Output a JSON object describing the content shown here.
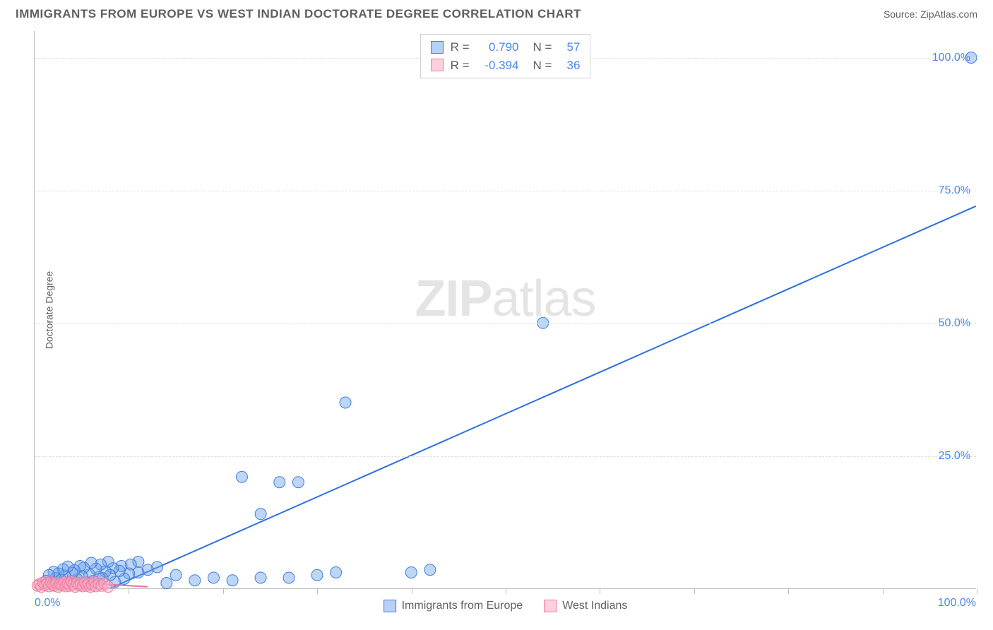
{
  "title": "IMMIGRANTS FROM EUROPE VS WEST INDIAN DOCTORATE DEGREE CORRELATION CHART",
  "source": "Source: ZipAtlas.com",
  "y_axis_label": "Doctorate Degree",
  "watermark_bold": "ZIP",
  "watermark_rest": "atlas",
  "chart": {
    "type": "scatter",
    "xlim": [
      0,
      100
    ],
    "ylim": [
      0,
      105
    ],
    "x_ticks": [
      0,
      10,
      20,
      30,
      40,
      50,
      60,
      70,
      80,
      90,
      100
    ],
    "y_gridlines": [
      25,
      50,
      75,
      100
    ],
    "y_tick_labels": [
      {
        "v": 25,
        "text": "25.0%"
      },
      {
        "v": 50,
        "text": "50.0%"
      },
      {
        "v": 75,
        "text": "75.0%"
      },
      {
        "v": 100,
        "text": "100.0%"
      }
    ],
    "x_tick_labels": [
      {
        "v": 0,
        "text": "0.0%",
        "align": "left"
      },
      {
        "v": 100,
        "text": "100.0%",
        "align": "right"
      }
    ],
    "background_color": "#ffffff",
    "grid_color": "#e0e0e0",
    "axis_color": "#bdbdbd",
    "tick_label_color": "#4a86e8",
    "marker_radius": 8,
    "marker_opacity": 0.45,
    "series": [
      {
        "name": "Immigrants from Europe",
        "color": "#6fa1e8",
        "stroke": "#3f7edb",
        "r_label": "R =",
        "r_value": "0.790",
        "n_label": "N =",
        "n_value": "57",
        "trend": {
          "x1": 8,
          "y1": 0,
          "x2": 100,
          "y2": 72,
          "color": "#2d6fe0",
          "width": 2
        },
        "points": [
          [
            99.5,
            100
          ],
          [
            54,
            50
          ],
          [
            33,
            35
          ],
          [
            22,
            21
          ],
          [
            26,
            20
          ],
          [
            28,
            20
          ],
          [
            24,
            14
          ],
          [
            40,
            3
          ],
          [
            42,
            3.5
          ],
          [
            32,
            3
          ],
          [
            30,
            2.5
          ],
          [
            27,
            2
          ],
          [
            24,
            2
          ],
          [
            21,
            1.5
          ],
          [
            19,
            2
          ],
          [
            17,
            1.5
          ],
          [
            15,
            2.5
          ],
          [
            14,
            1
          ],
          [
            13,
            4
          ],
          [
            12,
            3.5
          ],
          [
            11,
            3
          ],
          [
            11,
            5
          ],
          [
            10.2,
            4.5
          ],
          [
            10,
            2.8
          ],
          [
            9.5,
            1.8
          ],
          [
            9.2,
            4.2
          ],
          [
            9,
            3.3
          ],
          [
            8.5,
            1.2
          ],
          [
            8.3,
            3.8
          ],
          [
            8,
            2.5
          ],
          [
            7.8,
            5
          ],
          [
            7.5,
            3.2
          ],
          [
            7.2,
            1.9
          ],
          [
            7,
            4.5
          ],
          [
            6.8,
            2.1
          ],
          [
            6.5,
            3.7
          ],
          [
            6.2,
            1.4
          ],
          [
            6,
            4.8
          ],
          [
            5.8,
            2.6
          ],
          [
            5.5,
            1.1
          ],
          [
            5.2,
            3.9
          ],
          [
            5,
            2.3
          ],
          [
            4.8,
            4.2
          ],
          [
            4.5,
            1.7
          ],
          [
            4.2,
            3.4
          ],
          [
            4,
            2.9
          ],
          [
            3.8,
            1.3
          ],
          [
            3.5,
            4.1
          ],
          [
            3.2,
            2.4
          ],
          [
            3,
            3.6
          ],
          [
            2.8,
            1.6
          ],
          [
            2.5,
            2.8
          ],
          [
            2.2,
            1.9
          ],
          [
            2,
            3.1
          ],
          [
            1.8,
            1.2
          ],
          [
            1.5,
            2.5
          ],
          [
            1.2,
            1.4
          ]
        ]
      },
      {
        "name": "West Indians",
        "color": "#f8a8c0",
        "stroke": "#ef7ba0",
        "r_label": "R =",
        "r_value": "-0.394",
        "n_label": "N =",
        "n_value": "36",
        "trend": {
          "x1": 0,
          "y1": 1.5,
          "x2": 12,
          "y2": 0.3,
          "color": "#ef6f96",
          "width": 2
        },
        "points": [
          [
            0.3,
            0.5
          ],
          [
            0.5,
            0.8
          ],
          [
            0.7,
            0.3
          ],
          [
            0.9,
            1.1
          ],
          [
            1.1,
            0.6
          ],
          [
            1.3,
            0.9
          ],
          [
            1.5,
            0.4
          ],
          [
            1.7,
            1.2
          ],
          [
            1.9,
            0.7
          ],
          [
            2.1,
            0.5
          ],
          [
            2.3,
            1.0
          ],
          [
            2.5,
            0.3
          ],
          [
            2.7,
            0.8
          ],
          [
            2.9,
            0.6
          ],
          [
            3.1,
            1.1
          ],
          [
            3.3,
            0.4
          ],
          [
            3.5,
            0.9
          ],
          [
            3.7,
            0.5
          ],
          [
            3.9,
            1.3
          ],
          [
            4.1,
            0.7
          ],
          [
            4.3,
            0.3
          ],
          [
            4.5,
            1.0
          ],
          [
            4.7,
            0.6
          ],
          [
            4.9,
            0.8
          ],
          [
            5.1,
            0.4
          ],
          [
            5.3,
            1.1
          ],
          [
            5.5,
            0.5
          ],
          [
            5.7,
            0.9
          ],
          [
            5.9,
            0.3
          ],
          [
            6.1,
            0.7
          ],
          [
            6.3,
            1.2
          ],
          [
            6.5,
            0.4
          ],
          [
            6.8,
            0.8
          ],
          [
            7.1,
            0.5
          ],
          [
            7.4,
            0.9
          ],
          [
            7.8,
            0.3
          ]
        ]
      }
    ]
  },
  "legend_bottom": [
    {
      "label": "Immigrants from Europe",
      "fill": "#b8d0f6",
      "stroke": "#3f7edb"
    },
    {
      "label": "West Indians",
      "fill": "#fcd0dd",
      "stroke": "#ef7ba0"
    }
  ],
  "legend_top": [
    {
      "fill": "#b8d0f6",
      "stroke": "#3f7edb"
    },
    {
      "fill": "#fcd0dd",
      "stroke": "#ef7ba0"
    }
  ]
}
